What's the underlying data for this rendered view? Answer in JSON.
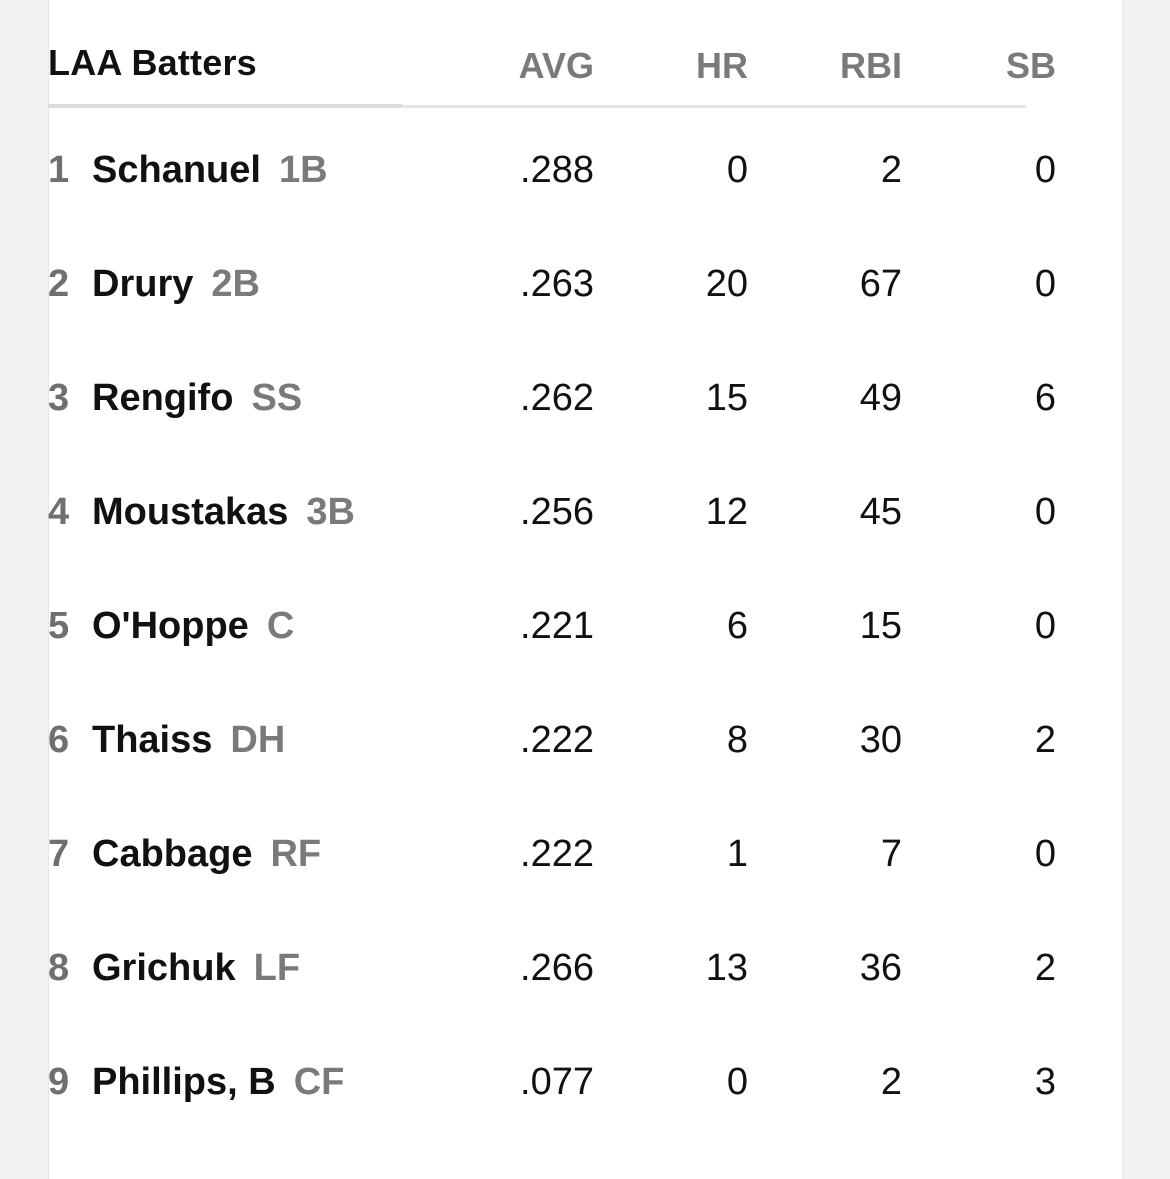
{
  "table": {
    "team_label": "LAA Batters",
    "columns": [
      "AVG",
      "HR",
      "RBI",
      "SB"
    ],
    "rows": [
      {
        "num": "1",
        "name": "Schanuel",
        "pos": "1B",
        "avg": ".288",
        "hr": "0",
        "rbi": "2",
        "sb": "0"
      },
      {
        "num": "2",
        "name": "Drury",
        "pos": "2B",
        "avg": ".263",
        "hr": "20",
        "rbi": "67",
        "sb": "0"
      },
      {
        "num": "3",
        "name": "Rengifo",
        "pos": "SS",
        "avg": ".262",
        "hr": "15",
        "rbi": "49",
        "sb": "6"
      },
      {
        "num": "4",
        "name": "Moustakas",
        "pos": "3B",
        "avg": ".256",
        "hr": "12",
        "rbi": "45",
        "sb": "0"
      },
      {
        "num": "5",
        "name": "O'Hoppe",
        "pos": "C",
        "avg": ".221",
        "hr": "6",
        "rbi": "15",
        "sb": "0"
      },
      {
        "num": "6",
        "name": "Thaiss",
        "pos": "DH",
        "avg": ".222",
        "hr": "8",
        "rbi": "30",
        "sb": "2"
      },
      {
        "num": "7",
        "name": "Cabbage",
        "pos": "RF",
        "avg": ".222",
        "hr": "1",
        "rbi": "7",
        "sb": "0"
      },
      {
        "num": "8",
        "name": "Grichuk",
        "pos": "LF",
        "avg": ".266",
        "hr": "13",
        "rbi": "36",
        "sb": "2"
      },
      {
        "num": "9",
        "name": "Phillips, B",
        "pos": "CF",
        "avg": ".077",
        "hr": "0",
        "rbi": "2",
        "sb": "3"
      }
    ]
  }
}
